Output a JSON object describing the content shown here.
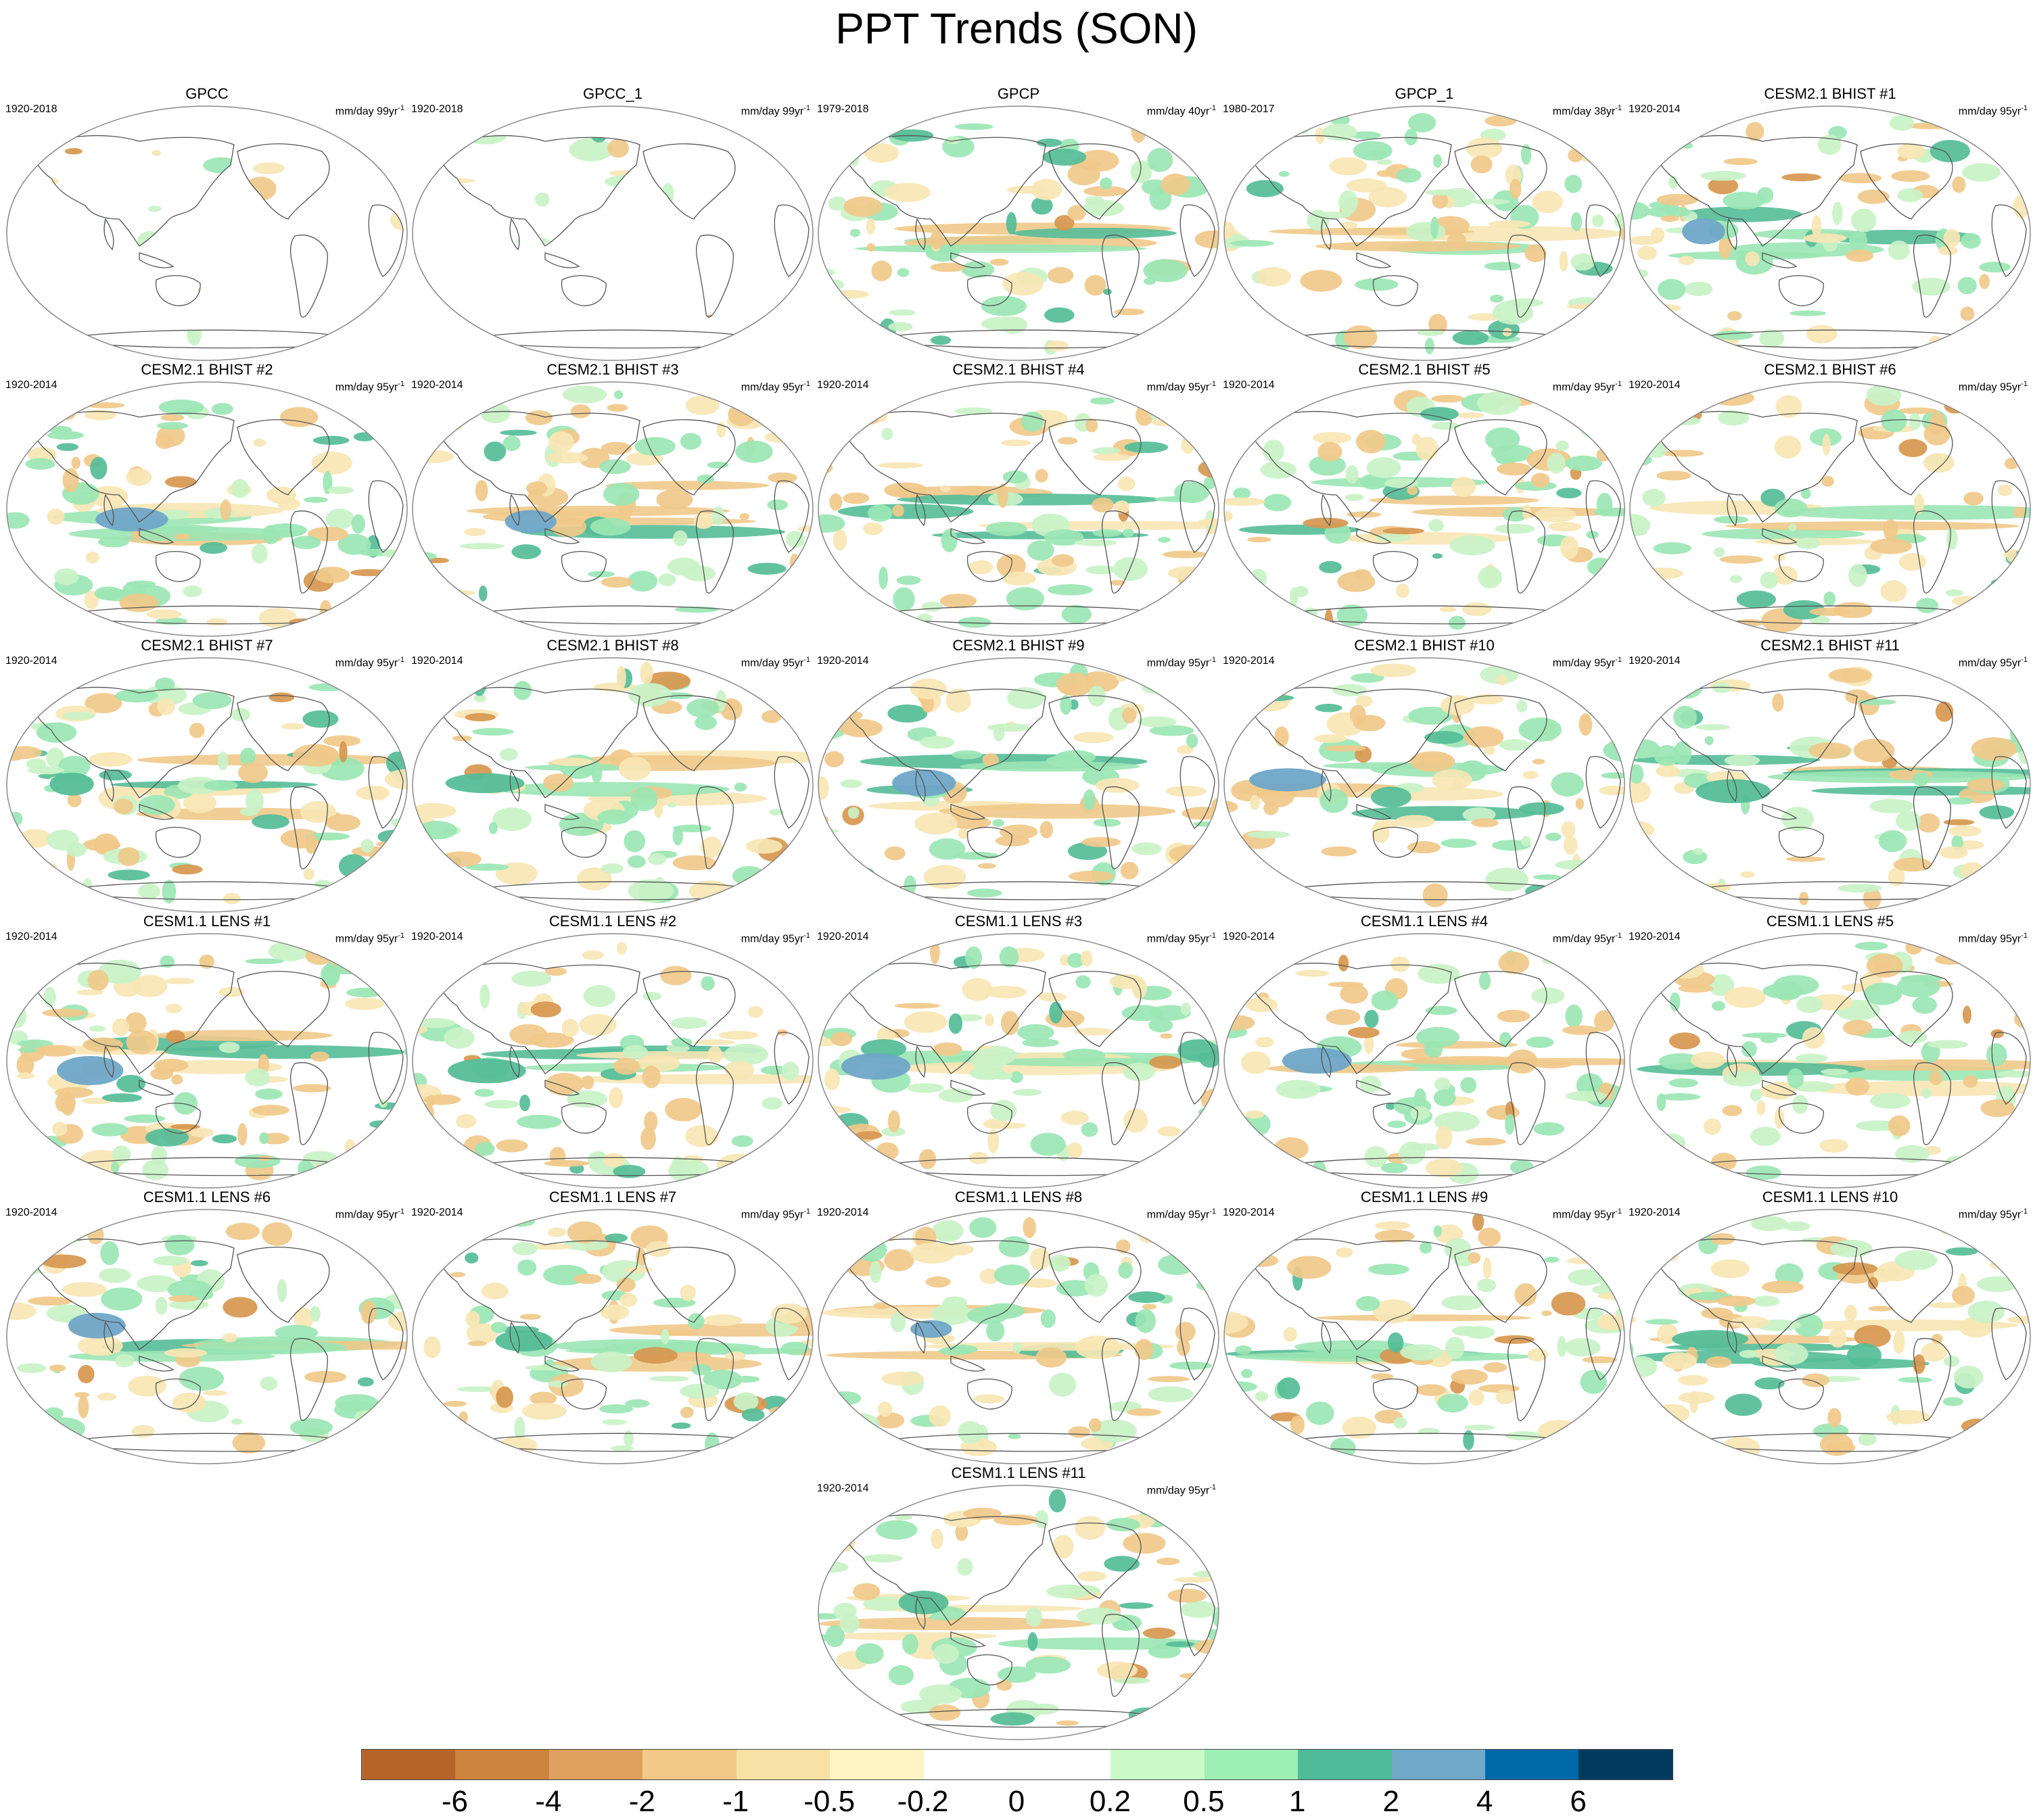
{
  "title": "PPT Trends (SON)",
  "palette": {
    "ocean_outline": "#8a8a8a",
    "coast": "#555555",
    "strong_dry": "#d7974f",
    "dry": "#f0c98a",
    "weak_dry": "#f7e6b4",
    "weak_wet": "#c9f2c7",
    "wet": "#9be6b4",
    "strong_wet": "#55bd98",
    "very_wet": "#6fa7c8"
  },
  "panels": [
    {
      "title": "GPCC",
      "period": "1920-2018",
      "units": "mm/day 99yr",
      "type": "land"
    },
    {
      "title": "GPCC_1",
      "period": "1920-2018",
      "units": "mm/day 99yr",
      "type": "land"
    },
    {
      "title": "GPCP",
      "period": "1979-2018",
      "units": "mm/day 40yr",
      "type": "obs"
    },
    {
      "title": "GPCP_1",
      "period": "1980-2017",
      "units": "mm/day 38yr",
      "type": "obs"
    },
    {
      "title": "CESM2.1 BHIST #1",
      "period": "1920-2014",
      "units": "mm/day 95yr",
      "type": "model"
    },
    {
      "title": "CESM2.1 BHIST #2",
      "period": "1920-2014",
      "units": "mm/day 95yr",
      "type": "model"
    },
    {
      "title": "CESM2.1 BHIST #3",
      "period": "1920-2014",
      "units": "mm/day 95yr",
      "type": "model"
    },
    {
      "title": "CESM2.1 BHIST #4",
      "period": "1920-2014",
      "units": "mm/day 95yr",
      "type": "model"
    },
    {
      "title": "CESM2.1 BHIST #5",
      "period": "1920-2014",
      "units": "mm/day 95yr",
      "type": "model"
    },
    {
      "title": "CESM2.1 BHIST #6",
      "period": "1920-2014",
      "units": "mm/day 95yr",
      "type": "model"
    },
    {
      "title": "CESM2.1 BHIST #7",
      "period": "1920-2014",
      "units": "mm/day 95yr",
      "type": "model"
    },
    {
      "title": "CESM2.1 BHIST #8",
      "period": "1920-2014",
      "units": "mm/day 95yr",
      "type": "model"
    },
    {
      "title": "CESM2.1 BHIST #9",
      "period": "1920-2014",
      "units": "mm/day 95yr",
      "type": "model"
    },
    {
      "title": "CESM2.1 BHIST #10",
      "period": "1920-2014",
      "units": "mm/day 95yr",
      "type": "model"
    },
    {
      "title": "CESM2.1 BHIST #11",
      "period": "1920-2014",
      "units": "mm/day 95yr",
      "type": "model"
    },
    {
      "title": "CESM1.1 LENS #1",
      "period": "1920-2014",
      "units": "mm/day 95yr",
      "type": "model"
    },
    {
      "title": "CESM1.1 LENS #2",
      "period": "1920-2014",
      "units": "mm/day 95yr",
      "type": "model"
    },
    {
      "title": "CESM1.1 LENS #3",
      "period": "1920-2014",
      "units": "mm/day 95yr",
      "type": "model"
    },
    {
      "title": "CESM1.1 LENS #4",
      "period": "1920-2014",
      "units": "mm/day 95yr",
      "type": "model"
    },
    {
      "title": "CESM1.1 LENS #5",
      "period": "1920-2014",
      "units": "mm/day 95yr",
      "type": "model"
    },
    {
      "title": "CESM1.1 LENS #6",
      "period": "1920-2014",
      "units": "mm/day 95yr",
      "type": "model"
    },
    {
      "title": "CESM1.1 LENS #7",
      "period": "1920-2014",
      "units": "mm/day 95yr",
      "type": "model"
    },
    {
      "title": "CESM1.1 LENS #8",
      "period": "1920-2014",
      "units": "mm/day 95yr",
      "type": "model"
    },
    {
      "title": "CESM1.1 LENS #9",
      "period": "1920-2014",
      "units": "mm/day 95yr",
      "type": "model"
    },
    {
      "title": "CESM1.1 LENS #10",
      "period": "1920-2014",
      "units": "mm/day 95yr",
      "type": "model"
    },
    {
      "title": "CESM1.1 LENS #11",
      "period": "1920-2014",
      "units": "mm/day 95yr",
      "type": "model"
    }
  ],
  "units_superscript": "-1",
  "colorbar": {
    "colors": [
      "#b5652a",
      "#cc843f",
      "#dea15f",
      "#f4c987",
      "#f7e1a5",
      "#fdf3c3",
      "#ffffff",
      "#ffffff",
      "#cafbc9",
      "#9defb6",
      "#50bb99",
      "#6fa8c9",
      "#0069a8",
      "#003a5e"
    ],
    "labels": [
      "-6",
      "-4",
      "-2",
      "-1",
      "-0.5",
      "-0.2",
      "0",
      "0.2",
      "0.5",
      "1",
      "2",
      "4",
      "6"
    ]
  }
}
